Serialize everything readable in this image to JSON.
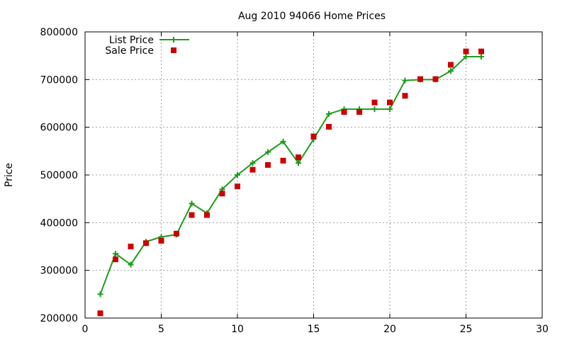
{
  "chart_data": {
    "type": "line",
    "title": "Aug 2010 94066 Home Prices",
    "xlabel": "",
    "ylabel": "Price",
    "xlim": [
      0,
      30
    ],
    "ylim": [
      200000,
      800000
    ],
    "x_ticks": [
      "0",
      "5",
      "10",
      "15",
      "20",
      "25",
      "30"
    ],
    "y_ticks": [
      "200000",
      "300000",
      "400000",
      "500000",
      "600000",
      "700000",
      "800000"
    ],
    "x_tick_values": [
      0,
      5,
      10,
      15,
      20,
      25,
      30
    ],
    "y_tick_values": [
      200000,
      300000,
      400000,
      500000,
      600000,
      700000,
      800000
    ],
    "grid": true,
    "legend_position": "top-left",
    "series": [
      {
        "name": "List Price",
        "style": "line-with-plus-markers",
        "color": "#1a9e1a",
        "x": [
          1,
          2,
          3,
          4,
          5,
          6,
          7,
          8,
          9,
          10,
          11,
          12,
          13,
          14,
          15,
          16,
          17,
          18,
          19,
          20,
          21,
          22,
          23,
          24,
          25,
          26
        ],
        "y": [
          250000,
          335000,
          312000,
          360000,
          370000,
          375000,
          440000,
          420000,
          470000,
          500000,
          525000,
          548000,
          570000,
          525000,
          575000,
          628000,
          638000,
          638000,
          638000,
          638000,
          698000,
          700000,
          700000,
          718000,
          748000,
          748000
        ]
      },
      {
        "name": "Sale Price",
        "style": "square-markers",
        "color": "#cc0000",
        "x": [
          1,
          2,
          3,
          4,
          5,
          6,
          7,
          8,
          9,
          10,
          11,
          12,
          13,
          14,
          15,
          16,
          17,
          18,
          19,
          20,
          21,
          22,
          23,
          24,
          25,
          26
        ],
        "y": [
          210000,
          323000,
          350000,
          357000,
          362000,
          377000,
          416000,
          416000,
          461000,
          476000,
          511000,
          521000,
          530000,
          537000,
          581000,
          601000,
          632000,
          632000,
          652000,
          652000,
          666000,
          701000,
          701000,
          731000,
          759000,
          759000
        ]
      }
    ]
  }
}
